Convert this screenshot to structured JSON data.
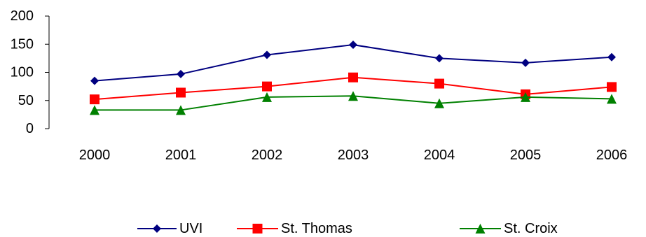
{
  "chart_data": {
    "type": "line",
    "categories": [
      "2000",
      "2001",
      "2002",
      "2003",
      "2004",
      "2005",
      "2006"
    ],
    "series": [
      {
        "name": "UVI",
        "values": [
          85,
          97,
          131,
          149,
          125,
          117,
          127
        ],
        "color": "#000080",
        "marker": "diamond"
      },
      {
        "name": "St. Thomas",
        "values": [
          52,
          64,
          75,
          91,
          80,
          61,
          74
        ],
        "color": "#ff0000",
        "marker": "square"
      },
      {
        "name": "St. Croix",
        "values": [
          33,
          33,
          56,
          58,
          45,
          56,
          53
        ],
        "color": "#008000",
        "marker": "triangle"
      }
    ],
    "ylim": [
      0,
      200
    ],
    "yticks": [
      0,
      50,
      100,
      150,
      200
    ],
    "grid": false,
    "legend_position": "bottom"
  }
}
